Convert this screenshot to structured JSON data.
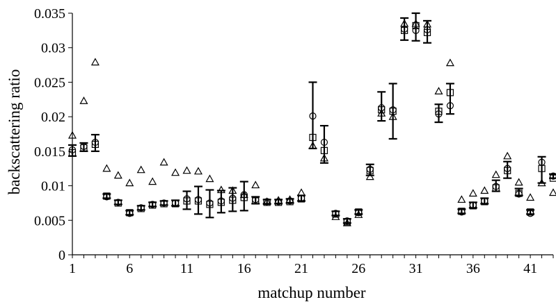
{
  "chart_data": {
    "type": "scatter",
    "xlabel": "matchup number",
    "ylabel": "backscattering ratio",
    "xlim": [
      1,
      43
    ],
    "ylim": [
      0,
      0.035
    ],
    "xticks": [
      1,
      6,
      11,
      16,
      21,
      26,
      31,
      36,
      41
    ],
    "yticks": [
      0,
      0.005,
      0.01,
      0.015,
      0.02,
      0.025,
      0.03,
      0.035
    ],
    "ytick_labels": [
      "0",
      "0.005",
      "0.01",
      "0.015",
      "0.02",
      "0.025",
      "0.03",
      "0.035"
    ],
    "grid": false,
    "x": [
      1,
      2,
      3,
      4,
      5,
      6,
      7,
      8,
      9,
      10,
      11,
      12,
      13,
      14,
      15,
      16,
      17,
      18,
      19,
      20,
      21,
      22,
      23,
      24,
      25,
      26,
      27,
      28,
      29,
      30,
      31,
      32,
      33,
      34,
      35,
      36,
      37,
      38,
      39,
      40,
      41,
      42,
      43
    ],
    "series": [
      {
        "marker": "triangle",
        "values": [
          0.0173,
          0.0223,
          0.0279,
          0.0125,
          0.0115,
          0.0104,
          0.0123,
          0.0106,
          0.0134,
          0.0119,
          0.0122,
          0.0121,
          0.011,
          0.0094,
          0.0093,
          0.0087,
          0.0101,
          0.0077,
          0.0079,
          0.008,
          0.009,
          0.0158,
          0.014,
          0.0055,
          0.0046,
          0.0058,
          0.0113,
          0.0205,
          0.02,
          0.0335,
          0.0335,
          0.0334,
          0.0237,
          0.0278,
          0.008,
          0.0089,
          0.0093,
          0.0116,
          0.0143,
          0.0105,
          0.0083,
          0.0104,
          0.009
        ]
      },
      {
        "marker": "square",
        "values": [
          0.0148,
          0.0155,
          0.016,
          0.0085,
          0.0075,
          0.0061,
          0.0067,
          0.0072,
          0.0074,
          0.0074,
          0.0078,
          0.0078,
          0.0073,
          0.0076,
          0.0079,
          0.0083,
          0.0078,
          0.0076,
          0.0076,
          0.0077,
          0.0081,
          0.017,
          0.0151,
          0.0059,
          0.0048,
          0.0062,
          0.0122,
          0.021,
          0.0208,
          0.0325,
          0.0332,
          0.0322,
          0.0208,
          0.0235,
          0.0063,
          0.0071,
          0.0077,
          0.0097,
          0.0122,
          0.0089,
          0.0062,
          0.0125,
          0.0111
        ]
      },
      {
        "marker": "circle",
        "values": [
          0.0152,
          0.0157,
          0.0163,
          0.0084,
          0.0076,
          0.006,
          0.0068,
          0.0073,
          0.0075,
          0.0075,
          0.0081,
          0.008,
          0.0075,
          0.0078,
          0.0082,
          0.0087,
          0.008,
          0.0077,
          0.0077,
          0.0078,
          0.0082,
          0.0201,
          0.0163,
          0.006,
          0.0049,
          0.0061,
          0.0124,
          0.0213,
          0.021,
          0.0327,
          0.0325,
          0.0326,
          0.0204,
          0.0216,
          0.0062,
          0.0072,
          0.0078,
          0.0099,
          0.0125,
          0.0088,
          0.006,
          0.0134,
          0.0114
        ]
      }
    ],
    "error_bars": {
      "center": [
        0.0151,
        0.0156,
        0.0162,
        0.0085,
        0.0076,
        0.0061,
        0.0068,
        0.0073,
        0.0075,
        0.0075,
        0.0079,
        0.0079,
        0.0074,
        0.0077,
        0.008,
        0.0085,
        0.0079,
        0.0077,
        0.0077,
        0.0078,
        0.0082,
        0.0202,
        0.016,
        0.006,
        0.0049,
        0.0062,
        0.0123,
        0.0215,
        0.0208,
        0.0327,
        0.033,
        0.0323,
        0.0205,
        0.0226,
        0.0063,
        0.0072,
        0.0078,
        0.01,
        0.0123,
        0.0091,
        0.0062,
        0.0123,
        0.0114
      ],
      "half_width": [
        0.0008,
        0.0006,
        0.0012,
        0.0003,
        0.0003,
        0.0003,
        0.0003,
        0.0003,
        0.0003,
        0.0004,
        0.0013,
        0.002,
        0.002,
        0.0016,
        0.0017,
        0.0021,
        0.0005,
        0.0003,
        0.0003,
        0.0003,
        0.0004,
        0.0048,
        0.0027,
        0.0003,
        0.0003,
        0.0003,
        0.0008,
        0.0021,
        0.004,
        0.0016,
        0.002,
        0.0016,
        0.0013,
        0.0022,
        0.0003,
        0.0004,
        0.0004,
        0.0008,
        0.0012,
        0.0005,
        0.0003,
        0.0019,
        0.0003
      ]
    }
  }
}
